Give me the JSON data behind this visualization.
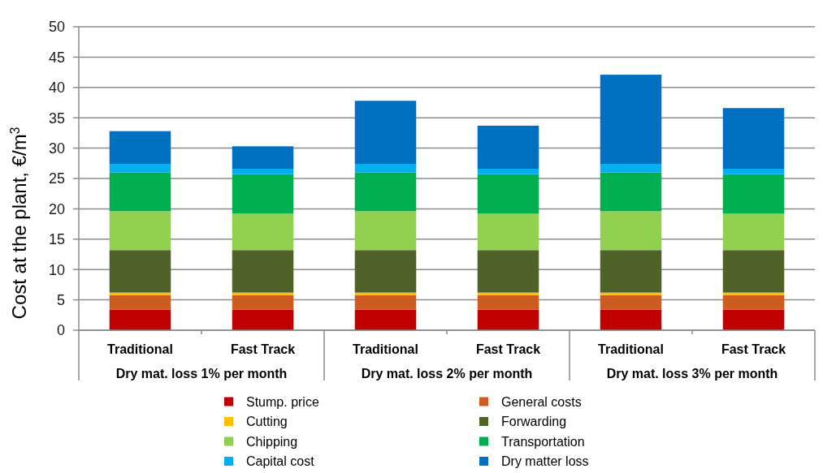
{
  "chart_data": {
    "type": "bar",
    "stacked": true,
    "ylabel": "Cost at the plant, €/m$^{3}$",
    "categories": [
      "Traditional",
      "Fast Track",
      "Traditional",
      "Fast Track",
      "Traditional",
      "Fast Track"
    ],
    "annotations": [
      "Dry mat. loss 1% per month",
      "Dry mat. loss 2% per month",
      "Dry mat. loss 3% per month"
    ],
    "series": [
      {
        "name": "Stump. price",
        "color": "#c00000",
        "values": [
          3.4,
          3.4,
          3.4,
          3.4,
          3.4,
          3.4
        ]
      },
      {
        "name": "General costs",
        "color": "#cc5c20",
        "values": [
          2.4,
          2.4,
          2.4,
          2.4,
          2.4,
          2.4
        ]
      },
      {
        "name": "Cutting",
        "color": "#ffc000",
        "values": [
          0.4,
          0.4,
          0.4,
          0.4,
          0.4,
          0.4
        ]
      },
      {
        "name": "Forwarding",
        "color": "#4f6228",
        "values": [
          7.0,
          7.0,
          7.0,
          7.0,
          7.0,
          7.0
        ]
      },
      {
        "name": "Chipping",
        "color": "#92d050",
        "values": [
          6.4,
          6.0,
          6.4,
          6.0,
          6.4,
          6.0
        ]
      },
      {
        "name": "Transportation",
        "color": "#00b050",
        "values": [
          6.4,
          6.5,
          6.4,
          6.5,
          6.4,
          6.5
        ]
      },
      {
        "name": "Capital cost",
        "color": "#00b0f0",
        "values": [
          1.4,
          0.9,
          1.4,
          0.9,
          1.4,
          0.9
        ]
      },
      {
        "name": "Dry matter loss",
        "color": "#0070c0",
        "values": [
          5.4,
          3.7,
          10.4,
          7.1,
          14.7,
          10.0
        ]
      }
    ],
    "ylim": [
      0,
      50
    ],
    "yticks": [
      0,
      5,
      10,
      15,
      20,
      25,
      30,
      35,
      40,
      45,
      50
    ],
    "grid": "y",
    "legend": "bottom"
  }
}
